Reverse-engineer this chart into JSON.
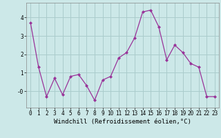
{
  "x": [
    0,
    1,
    2,
    3,
    4,
    5,
    6,
    7,
    8,
    9,
    10,
    11,
    12,
    13,
    14,
    15,
    16,
    17,
    18,
    19,
    20,
    21,
    22,
    23
  ],
  "y": [
    3.7,
    1.3,
    -0.3,
    0.7,
    -0.2,
    0.8,
    0.9,
    0.3,
    -0.5,
    0.6,
    0.8,
    1.8,
    2.1,
    2.9,
    4.3,
    4.4,
    3.5,
    1.7,
    2.5,
    2.1,
    1.5,
    1.3,
    -0.3,
    -0.3
  ],
  "line_color": "#993399",
  "marker": "D",
  "marker_size": 2.0,
  "bg_color": "#cce8e8",
  "grid_color": "#aacccc",
  "xlabel": "Windchill (Refroidissement éolien,°C)",
  "xlabel_fontsize": 6.5,
  "yticks": [
    0,
    1,
    2,
    3,
    4
  ],
  "ytick_labels": [
    "-0",
    "1",
    "2",
    "3",
    "4"
  ],
  "ylim": [
    -0.9,
    4.8
  ],
  "xlim": [
    -0.5,
    23.5
  ],
  "xtick_labels": [
    "0",
    "1",
    "2",
    "3",
    "4",
    "5",
    "6",
    "7",
    "8",
    "9",
    "10",
    "11",
    "12",
    "13",
    "14",
    "15",
    "16",
    "17",
    "18",
    "19",
    "20",
    "21",
    "22",
    "23"
  ],
  "tick_fontsize": 5.5
}
